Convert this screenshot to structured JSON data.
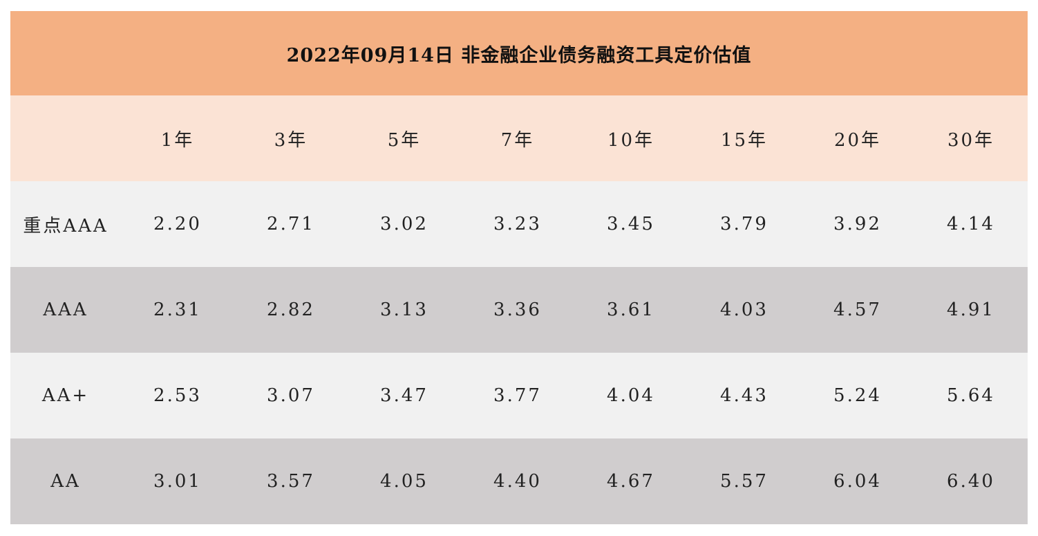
{
  "title": "2022年09月14日 非金融企业债务融资工具定价估值",
  "columns": [
    "",
    "1年",
    "3年",
    "5年",
    "7年",
    "10年",
    "15年",
    "20年",
    "30年"
  ],
  "rows": [
    {
      "label": "重点AAA",
      "values": [
        "2.20",
        "2.71",
        "3.02",
        "3.23",
        "3.45",
        "3.79",
        "3.92",
        "4.14"
      ]
    },
    {
      "label": "AAA",
      "values": [
        "2.31",
        "2.82",
        "3.13",
        "3.36",
        "3.61",
        "4.03",
        "4.57",
        "4.91"
      ]
    },
    {
      "label": "AA+",
      "values": [
        "2.53",
        "3.07",
        "3.47",
        "3.77",
        "4.04",
        "4.43",
        "5.24",
        "5.64"
      ]
    },
    {
      "label": "AA",
      "values": [
        "3.01",
        "3.57",
        "4.05",
        "4.40",
        "4.67",
        "5.57",
        "6.04",
        "6.40"
      ]
    }
  ],
  "colors": {
    "title_bg": "#f4b083",
    "header_bg": "#fbe3d5",
    "row_light": "#f1f1f1",
    "row_dark": "#d0cdce"
  }
}
